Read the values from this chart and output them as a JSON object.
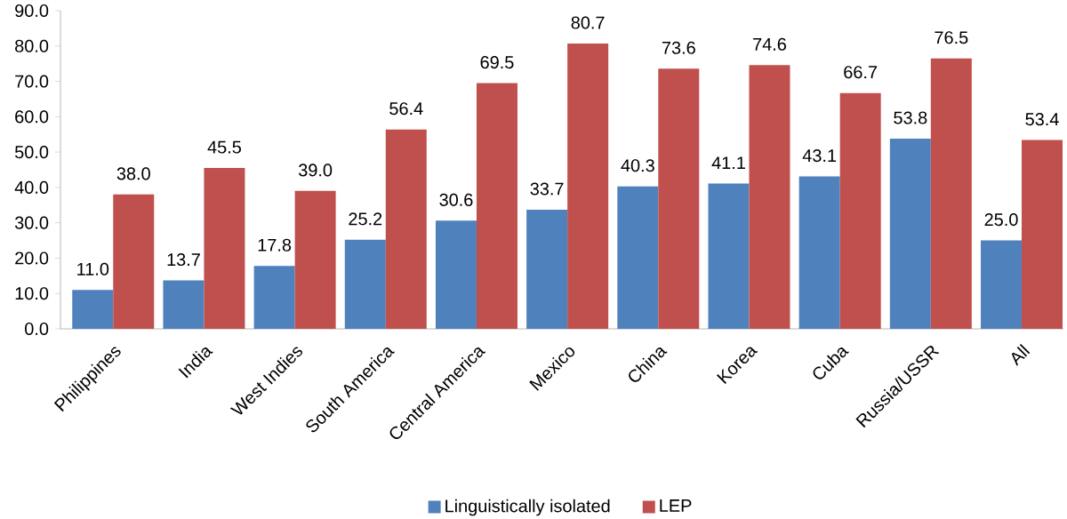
{
  "chart_data": {
    "type": "bar",
    "categories": [
      "Philippines",
      "India",
      "West Indies",
      "South America",
      "Central America",
      "Mexico",
      "China",
      "Korea",
      "Cuba",
      "Russia/USSR",
      "All"
    ],
    "series": [
      {
        "name": "Linguistically isolated",
        "color": "#4f81bd",
        "values": [
          11.0,
          13.7,
          17.8,
          25.2,
          30.6,
          33.7,
          40.3,
          41.1,
          43.1,
          53.8,
          25.0
        ],
        "value_labels": [
          "11.0",
          "13.7",
          "17.8",
          "25.2",
          "30.6",
          "33.7",
          "40.3",
          "41.1",
          "43.1",
          "53.8",
          "25.0"
        ]
      },
      {
        "name": "LEP",
        "color": "#c0504d",
        "values": [
          38.0,
          45.5,
          39.0,
          56.4,
          69.5,
          80.7,
          73.6,
          74.6,
          66.7,
          76.5,
          53.4
        ],
        "value_labels": [
          "38.0",
          "45.5",
          "39.0",
          "56.4",
          "69.5",
          "80.7",
          "73.6",
          "74.6",
          "66.7",
          "76.5",
          "53.4"
        ]
      }
    ],
    "ylim": [
      0,
      90
    ],
    "yticks": [
      {
        "value": 0,
        "label": "0.0"
      },
      {
        "value": 10,
        "label": "10.0"
      },
      {
        "value": 20,
        "label": "20.0"
      },
      {
        "value": 30,
        "label": "30.0"
      },
      {
        "value": 40,
        "label": "40.0"
      },
      {
        "value": 50,
        "label": "50.0"
      },
      {
        "value": 60,
        "label": "60.0"
      },
      {
        "value": 70,
        "label": "70.0"
      },
      {
        "value": 80,
        "label": "80.0"
      },
      {
        "value": 90,
        "label": "90.0"
      }
    ],
    "grid": false,
    "legend": "bottom"
  }
}
